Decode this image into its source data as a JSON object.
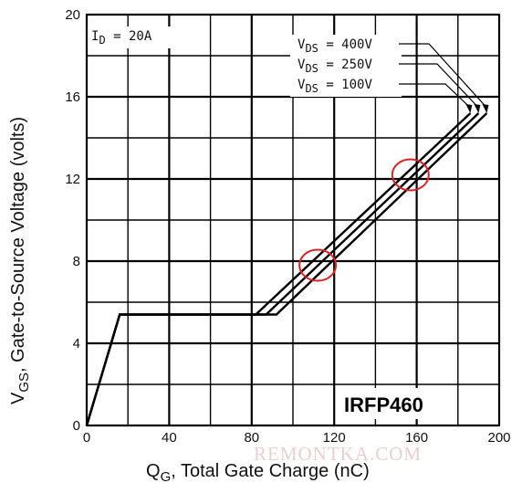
{
  "chart_data": {
    "type": "line",
    "xlabel": {
      "main": "Q",
      "sub": "G",
      "rest": ", Total Gate Charge (nC)"
    },
    "ylabel": {
      "main": "V",
      "sub": "GS",
      "rest": ", Gate-to-Source Voltage (volts)"
    },
    "xlim": [
      0,
      200
    ],
    "ylim": [
      0,
      20
    ],
    "x_ticks": [
      "0",
      "40",
      "80",
      "120",
      "160",
      "200"
    ],
    "y_ticks": [
      "0",
      "4",
      "8",
      "12",
      "16",
      "20"
    ],
    "x_minor_step": 20,
    "y_minor_step": 2,
    "grid": true,
    "annotation_id": {
      "main": "I",
      "sub": "D",
      "rest": " = 20A"
    },
    "series": [
      {
        "name": "V_DS = 400V",
        "label": {
          "main": "V",
          "sub": "DS",
          "rest": " = 400V"
        },
        "points": [
          [
            0,
            0
          ],
          [
            16,
            5.4
          ],
          [
            92,
            5.4
          ],
          [
            194,
            15.2
          ]
        ]
      },
      {
        "name": "V_DS = 250V",
        "label": {
          "main": "V",
          "sub": "DS",
          "rest": " = 250V"
        },
        "points": [
          [
            0,
            0
          ],
          [
            16,
            5.4
          ],
          [
            87,
            5.4
          ],
          [
            190,
            15.2
          ]
        ]
      },
      {
        "name": "V_DS = 100V",
        "label": {
          "main": "V",
          "sub": "DS",
          "rest": " = 100V"
        },
        "points": [
          [
            0,
            0
          ],
          [
            16,
            5.4
          ],
          [
            82,
            5.4
          ],
          [
            186,
            15.2
          ]
        ]
      }
    ],
    "highlights": [
      {
        "x": 112,
        "y": 7.8
      },
      {
        "x": 157,
        "y": 12.2
      }
    ],
    "highlight_color": "#e02020",
    "line_color": "#000000",
    "part_number": "IRFP460"
  },
  "watermark": "REMONTKA.COM"
}
